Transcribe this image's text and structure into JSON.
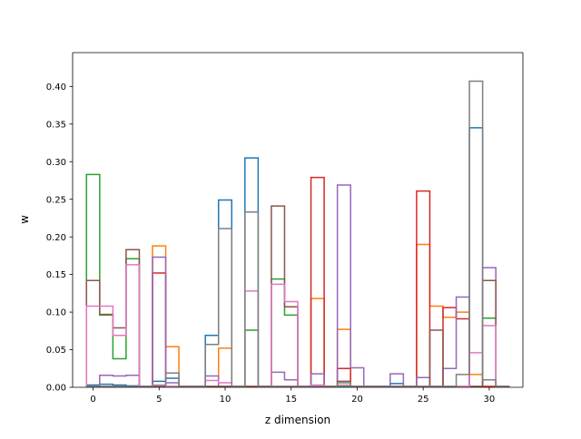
{
  "chart_data": {
    "type": "step-histogram",
    "title": "",
    "xlabel": "z dimension",
    "ylabel": "w",
    "xlim": [
      -1.55,
      32.55
    ],
    "ylim": [
      0,
      0.445
    ],
    "x_ticks": [
      0,
      5,
      10,
      15,
      20,
      25,
      30
    ],
    "x_tick_labels": [
      "0",
      "5",
      "10",
      "15",
      "20",
      "25",
      "30"
    ],
    "y_ticks": [
      0.0,
      0.05,
      0.1,
      0.15,
      0.2,
      0.25,
      0.3,
      0.35,
      0.4
    ],
    "y_tick_labels": [
      "0.00",
      "0.05",
      "0.10",
      "0.15",
      "0.20",
      "0.25",
      "0.30",
      "0.35",
      "0.40"
    ],
    "bin_edges": [
      -0.5,
      0.5,
      1.5,
      2.5,
      3.5,
      4.5,
      5.5,
      6.5,
      7.5,
      8.5,
      9.5,
      10.5,
      11.5,
      12.5,
      13.5,
      14.5,
      15.5,
      16.5,
      17.5,
      18.5,
      19.5,
      20.5,
      21.5,
      22.5,
      23.5,
      24.5,
      25.5,
      26.5,
      27.5,
      28.5,
      29.5,
      30.5,
      31.5
    ],
    "grid": false,
    "legend": "none",
    "series": [
      {
        "color": "#1f77b4",
        "values": [
          0.003,
          0.004,
          0.003,
          0.002,
          0.001,
          0.008,
          0.012,
          0.001,
          0.001,
          0.069,
          0.249,
          0.001,
          0.305,
          0.001,
          0.001,
          0.001,
          0.001,
          0.001,
          0.001,
          0.001,
          0.001,
          0.001,
          0.001,
          0.005,
          0.001,
          0.001,
          0.001,
          0.001,
          0.001,
          0.345,
          0.001,
          0.001
        ]
      },
      {
        "color": "#ff7f0e",
        "values": [
          0.001,
          0.001,
          0.001,
          0.001,
          0.001,
          0.188,
          0.054,
          0.001,
          0.001,
          0.001,
          0.052,
          0.001,
          0.001,
          0.001,
          0.001,
          0.001,
          0.001,
          0.118,
          0.001,
          0.077,
          0.001,
          0.001,
          0.001,
          0.001,
          0.001,
          0.19,
          0.108,
          0.093,
          0.1,
          0.017,
          0.001,
          0.001
        ]
      },
      {
        "color": "#2ca02c",
        "values": [
          0.283,
          0.096,
          0.038,
          0.171,
          0.001,
          0.001,
          0.001,
          0.001,
          0.001,
          0.001,
          0.001,
          0.001,
          0.076,
          0.001,
          0.144,
          0.096,
          0.001,
          0.001,
          0.001,
          0.001,
          0.001,
          0.001,
          0.001,
          0.001,
          0.001,
          0.001,
          0.001,
          0.001,
          0.001,
          0.001,
          0.092,
          0.001
        ]
      },
      {
        "color": "#d62728",
        "values": [
          0.001,
          0.001,
          0.001,
          0.001,
          0.001,
          0.152,
          0.001,
          0.001,
          0.001,
          0.001,
          0.001,
          0.001,
          0.001,
          0.001,
          0.001,
          0.001,
          0.001,
          0.279,
          0.001,
          0.025,
          0.001,
          0.001,
          0.001,
          0.001,
          0.001,
          0.261,
          0.001,
          0.106,
          0.091,
          0.001,
          0.001,
          0.001
        ]
      },
      {
        "color": "#9467bd",
        "values": [
          0.001,
          0.016,
          0.015,
          0.016,
          0.001,
          0.173,
          0.006,
          0.001,
          0.001,
          0.015,
          0.001,
          0.001,
          0.001,
          0.001,
          0.02,
          0.01,
          0.001,
          0.018,
          0.001,
          0.269,
          0.026,
          0.001,
          0.001,
          0.018,
          0.001,
          0.013,
          0.001,
          0.025,
          0.12,
          0.001,
          0.159,
          0.001
        ]
      },
      {
        "color": "#8c564b",
        "values": [
          0.142,
          0.097,
          0.079,
          0.183,
          0.001,
          0.001,
          0.001,
          0.001,
          0.001,
          0.001,
          0.001,
          0.001,
          0.001,
          0.001,
          0.241,
          0.107,
          0.001,
          0.001,
          0.001,
          0.008,
          0.001,
          0.001,
          0.001,
          0.001,
          0.001,
          0.001,
          0.076,
          0.001,
          0.001,
          0.001,
          0.142,
          0.001
        ]
      },
      {
        "color": "#e377c2",
        "values": [
          0.108,
          0.108,
          0.069,
          0.163,
          0.001,
          0.003,
          0.001,
          0.001,
          0.001,
          0.009,
          0.006,
          0.001,
          0.128,
          0.001,
          0.137,
          0.114,
          0.001,
          0.003,
          0.001,
          0.003,
          0.001,
          0.001,
          0.001,
          0.001,
          0.001,
          0.001,
          0.001,
          0.001,
          0.001,
          0.046,
          0.082,
          0.001
        ]
      },
      {
        "color": "#7f7f7f",
        "values": [
          0.001,
          0.001,
          0.001,
          0.001,
          0.001,
          0.002,
          0.019,
          0.001,
          0.001,
          0.057,
          0.211,
          0.001,
          0.233,
          0.001,
          0.001,
          0.001,
          0.001,
          0.001,
          0.001,
          0.006,
          0.001,
          0.001,
          0.001,
          0.001,
          0.001,
          0.001,
          0.001,
          0.001,
          0.017,
          0.407,
          0.01,
          0.001
        ]
      }
    ]
  }
}
